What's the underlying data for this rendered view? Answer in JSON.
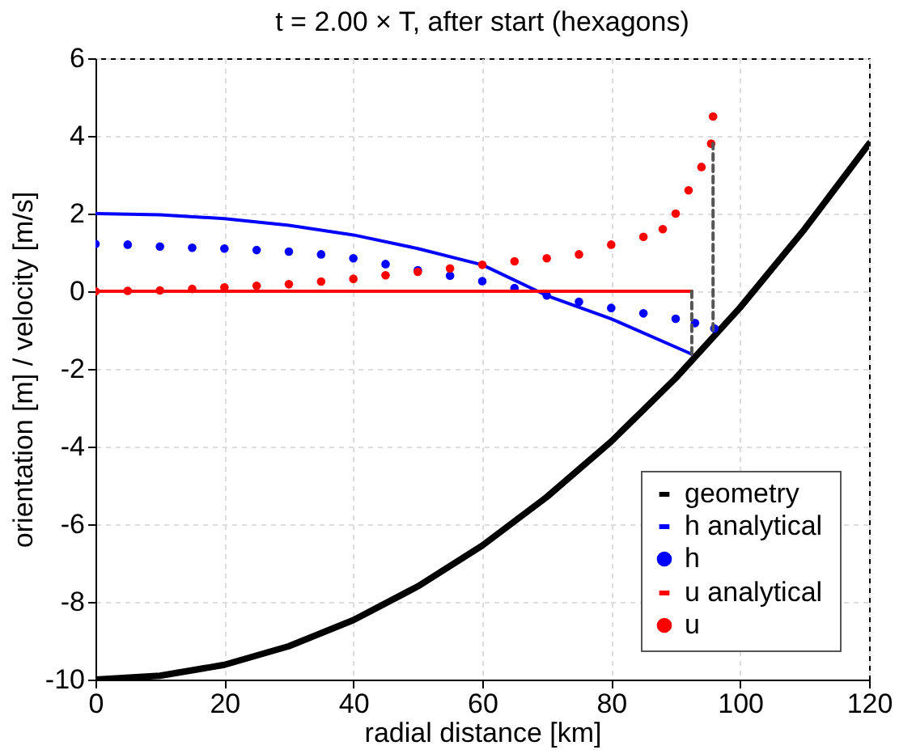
{
  "chart_data": {
    "type": "line",
    "title": "t = 2.00 × T, after start (hexagons)",
    "xlabel": "radial distance [km]",
    "ylabel": "orientation [m] / velocity [m/s]",
    "xlim": [
      0,
      120
    ],
    "ylim": [
      -10,
      6
    ],
    "xticks": [
      0,
      20,
      40,
      60,
      80,
      100,
      120
    ],
    "yticks": [
      -10,
      -8,
      -6,
      -4,
      -2,
      0,
      2,
      4,
      6
    ],
    "grid": true,
    "legend": "bottom right",
    "series": [
      {
        "name": "geometry",
        "color": "#000000",
        "x": [
          0,
          10,
          20,
          30,
          40,
          50,
          60,
          70,
          80,
          90,
          100,
          110,
          120
        ],
        "values": [
          -10,
          -9.9,
          -9.62,
          -9.14,
          -8.47,
          -7.6,
          -6.55,
          -5.3,
          -3.87,
          -2.24,
          -0.42,
          1.6,
          3.8
        ]
      },
      {
        "name": "h  analytical",
        "color": "#0000ff",
        "x": [
          0,
          10,
          20,
          30,
          40,
          50,
          60,
          70,
          80,
          92.5
        ],
        "values": [
          2,
          1.97,
          1.87,
          1.7,
          1.45,
          1.1,
          0.68,
          -0.11,
          -0.71,
          -1.62
        ]
      },
      {
        "name": "h",
        "type": "scatter",
        "color": "#0000ff",
        "x": [
          0,
          5,
          10,
          15,
          20,
          25,
          30,
          35,
          40,
          45,
          50,
          55,
          60,
          65,
          70,
          75,
          80,
          85,
          90,
          93,
          96
        ],
        "values": [
          1.22,
          1.2,
          1.15,
          1.12,
          1.1,
          1.06,
          1.02,
          0.95,
          0.85,
          0.7,
          0.54,
          0.4,
          0.26,
          0.08,
          -0.11,
          -0.27,
          -0.43,
          -0.57,
          -0.71,
          -0.82,
          -0.96
        ]
      },
      {
        "name": "u  analytical",
        "color": "#ff0000",
        "x": [
          0,
          92.5
        ],
        "values": [
          0,
          0
        ]
      },
      {
        "name": "u",
        "type": "scatter",
        "color": "#ff0000",
        "x": [
          0,
          5,
          10,
          15,
          20,
          25,
          30,
          35,
          40,
          45,
          50,
          55,
          60,
          65,
          70,
          75,
          80,
          85,
          88,
          90,
          92,
          94,
          95.5,
          95.8
        ],
        "values": [
          0,
          0.01,
          0.02,
          0.06,
          0.1,
          0.14,
          0.18,
          0.25,
          0.32,
          0.41,
          0.5,
          0.59,
          0.68,
          0.77,
          0.85,
          0.95,
          1.2,
          1.4,
          1.6,
          2.0,
          2.6,
          3.2,
          3.8,
          4.5
        ]
      },
      {
        "color": "#555555",
        "line_style": "dashed",
        "x": [
          92.5,
          92.5
        ],
        "values": [
          -1.62,
          0
        ]
      },
      {
        "color": "#555555",
        "line_style": "dashed",
        "x": [
          95.8,
          95.8
        ],
        "values": [
          -1,
          3.8
        ]
      }
    ]
  }
}
